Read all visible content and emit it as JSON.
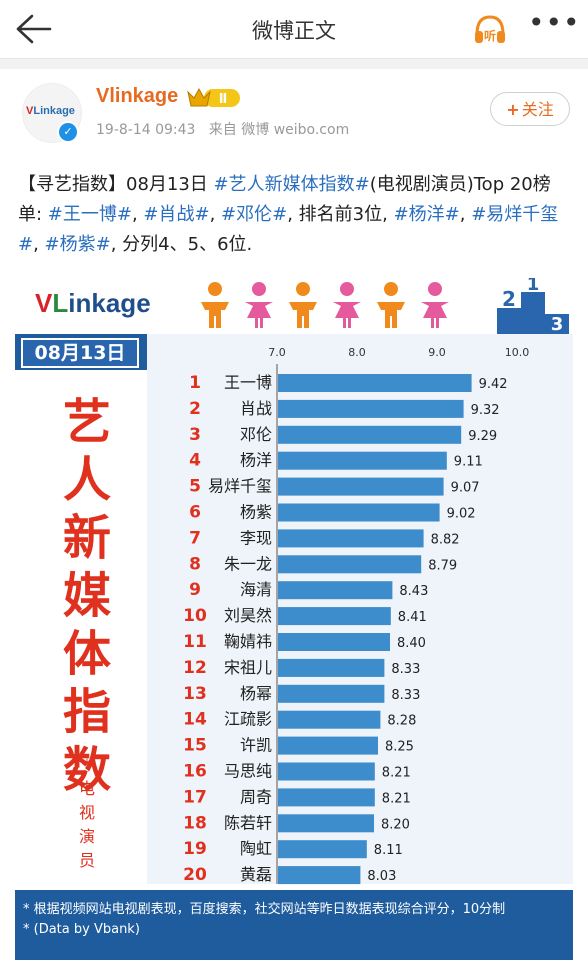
{
  "nav": {
    "title": "微博正文",
    "listen_label": "听",
    "more_label": "•••"
  },
  "post": {
    "username": "Vlinkage",
    "badge_label": "Ⅱ",
    "timestamp": "19-8-14 09:43",
    "source_prefix": "来自",
    "source": "微博 weibo.com",
    "follow_label": "关注",
    "text_segments": [
      {
        "t": "【寻艺指数】08月13日 ",
        "tag": false
      },
      {
        "t": "#艺人新媒体指数#",
        "tag": true
      },
      {
        "t": "(电视剧演员)Top 20榜单: ",
        "tag": false
      },
      {
        "t": "#王一博#",
        "tag": true
      },
      {
        "t": ", ",
        "tag": false
      },
      {
        "t": "#肖战#",
        "tag": true
      },
      {
        "t": ", ",
        "tag": false
      },
      {
        "t": "#邓伦#",
        "tag": true
      },
      {
        "t": ", 排名前3位, ",
        "tag": false
      },
      {
        "t": "#杨洋#",
        "tag": true
      },
      {
        "t": ", ",
        "tag": false
      },
      {
        "t": "#易烊千玺#",
        "tag": true
      },
      {
        "t": ", ",
        "tag": false
      },
      {
        "t": "#杨紫#",
        "tag": true
      },
      {
        "t": ", 分列4、5、6位.",
        "tag": false
      }
    ]
  },
  "infographic": {
    "logo": "VLinkage",
    "date": "08月13日",
    "big_title_chars": [
      "艺",
      "人",
      "新",
      "媒",
      "体",
      "指",
      "数"
    ],
    "small_title_chars": [
      "*",
      "电",
      "视",
      "演",
      "员"
    ],
    "footer_lines": [
      "* 根据视频网站电视剧表现，百度搜索，社交网站等昨日数据表现综合评分，10分制",
      "* (Data by Vbank)"
    ],
    "colors": {
      "bar": "#3d8ccb",
      "band": "#1f5c9e",
      "title_red": "#e0301e",
      "orange": "#f08a1c",
      "pink": "#e45a9c"
    }
  },
  "chart_data": {
    "type": "bar",
    "orientation": "horizontal",
    "xlim": [
      7.0,
      10.0
    ],
    "xticks": [
      "7.0",
      "8.0",
      "9.0",
      "10.0"
    ],
    "ranks": [
      "1",
      "2",
      "3",
      "4",
      "5",
      "6",
      "7",
      "8",
      "9",
      "10",
      "11",
      "12",
      "13",
      "14",
      "15",
      "16",
      "17",
      "18",
      "19",
      "20"
    ],
    "categories": [
      "王一博",
      "肖战",
      "邓伦",
      "杨洋",
      "易烊千玺",
      "杨紫",
      "李现",
      "朱一龙",
      "海清",
      "刘昊然",
      "鞠婧祎",
      "宋祖儿",
      "杨幂",
      "江疏影",
      "许凯",
      "马思纯",
      "周奇",
      "陈若轩",
      "陶虹",
      "黄磊"
    ],
    "values": [
      9.42,
      9.32,
      9.29,
      9.11,
      9.07,
      9.02,
      8.82,
      8.79,
      8.43,
      8.41,
      8.4,
      8.33,
      8.33,
      8.28,
      8.25,
      8.21,
      8.21,
      8.2,
      8.11,
      8.03
    ],
    "value_labels": [
      "9.42",
      "9.32",
      "9.29",
      "9.11",
      "9.07",
      "9.02",
      "8.82",
      "8.79",
      "8.43",
      "8.41",
      "8.40",
      "8.33",
      "8.33",
      "8.28",
      "8.25",
      "8.21",
      "8.21",
      "8.20",
      "8.11",
      "8.03"
    ]
  }
}
